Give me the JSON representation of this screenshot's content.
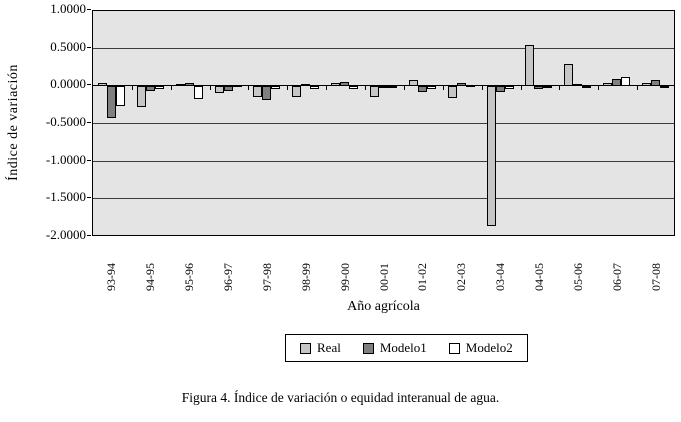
{
  "chart_data": {
    "type": "bar",
    "title": "",
    "categories": [
      "93-94",
      "94-95",
      "95-96",
      "96-97",
      "97-98",
      "98-99",
      "99-00",
      "00-01",
      "01-02",
      "02-03",
      "03-04",
      "04-05",
      "05-06",
      "06-07",
      "07-08"
    ],
    "series": [
      {
        "name": "Real",
        "color": "#c6c6c6",
        "values": [
          0.04,
          -0.28,
          0.03,
          -0.09,
          -0.14,
          -0.14,
          0.04,
          -0.14,
          0.08,
          -0.15,
          -1.85,
          0.55,
          0.29,
          0.05,
          0.05
        ]
      },
      {
        "name": "Modelo1",
        "color": "#7f7f7f",
        "values": [
          -0.42,
          -0.06,
          0.04,
          -0.06,
          -0.18,
          0.03,
          0.06,
          -0.02,
          -0.07,
          0.04,
          -0.07,
          -0.04,
          0.03,
          0.1,
          0.08
        ]
      },
      {
        "name": "Modelo2",
        "color": "#ffffff",
        "values": [
          -0.26,
          -0.03,
          -0.17,
          0.02,
          -0.04,
          -0.04,
          -0.03,
          -0.01,
          -0.04,
          0.02,
          -0.04,
          -0.02,
          0.01,
          0.13,
          0.01
        ]
      }
    ],
    "xlabel": "Año agrícola",
    "ylabel": "Índice de variación",
    "ylim": [
      -2.0,
      1.0
    ],
    "yticks": [
      1.0,
      0.5,
      0.0,
      -0.5,
      -1.0,
      -1.5,
      -2.0
    ],
    "ytick_labels": [
      "1.0000",
      "0.5000",
      "0.0000",
      "-0.5000",
      "-1.0000",
      "-1.5000",
      "-2.0000"
    ],
    "grid": true,
    "legend_position": "bottom",
    "plot_background": "#e4e4e4"
  },
  "caption": "Figura 4. Índice de variación o equidad interanual de agua."
}
